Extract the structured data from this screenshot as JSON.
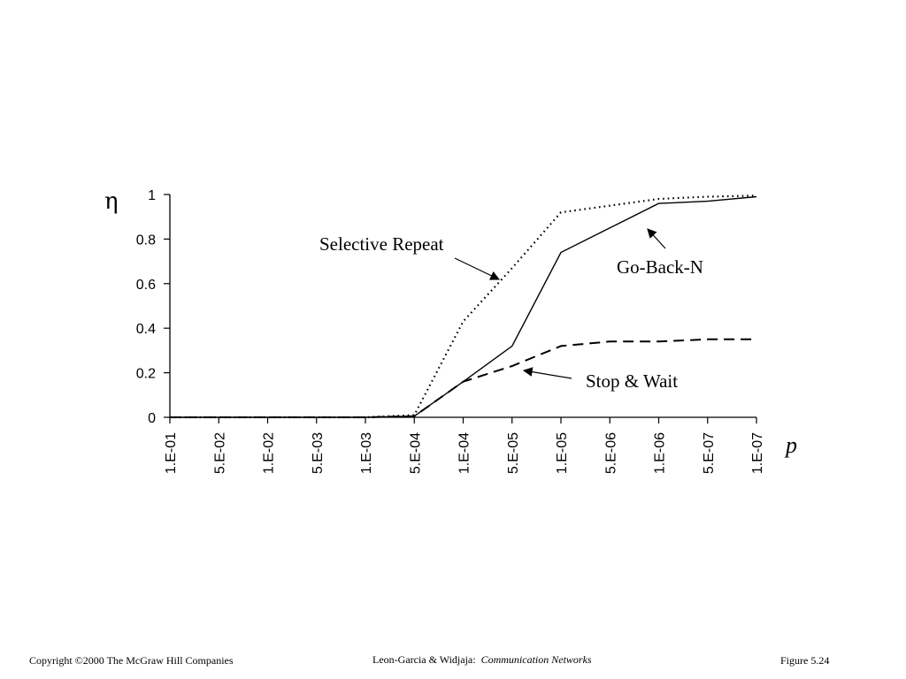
{
  "chart_data": {
    "type": "line",
    "title": "",
    "ylabel": "η",
    "xlabel": "p",
    "ylim": [
      0,
      1
    ],
    "yticks": [
      "0",
      "0.2",
      "0.4",
      "0.6",
      "0.8",
      "1"
    ],
    "categories": [
      "1.E-01",
      "5.E-02",
      "1.E-02",
      "5.E-03",
      "1.E-03",
      "5.E-04",
      "1.E-04",
      "5.E-05",
      "1.E-05",
      "5.E-06",
      "1.E-06",
      "5.E-07",
      "1.E-07"
    ],
    "series": [
      {
        "name": "Selective Repeat",
        "style": "dotted",
        "values": [
          0,
          0,
          0,
          0,
          0,
          0.01,
          0.43,
          0.67,
          0.92,
          0.95,
          0.98,
          0.99,
          0.995
        ]
      },
      {
        "name": "Go-Back-N",
        "style": "solid",
        "values": [
          0,
          0,
          0,
          0,
          0,
          0.005,
          0.16,
          0.32,
          0.74,
          0.85,
          0.96,
          0.97,
          0.99
        ]
      },
      {
        "name": "Stop & Wait",
        "style": "dashed",
        "values": [
          0,
          0,
          0,
          0,
          0,
          0.005,
          0.16,
          0.23,
          0.32,
          0.34,
          0.34,
          0.35,
          0.35
        ]
      }
    ],
    "grid": false,
    "legend": "none"
  },
  "annotations": {
    "selective_repeat": "Selective Repeat",
    "go_back_n": "Go-Back-N",
    "stop_wait": "Stop & Wait"
  },
  "footer": {
    "copyright": "Copyright ©2000 The McGraw Hill Companies",
    "authors": "Leon-Garcia & Widjaja:",
    "book": "Communication Networks",
    "figure": "Figure 5.24"
  }
}
